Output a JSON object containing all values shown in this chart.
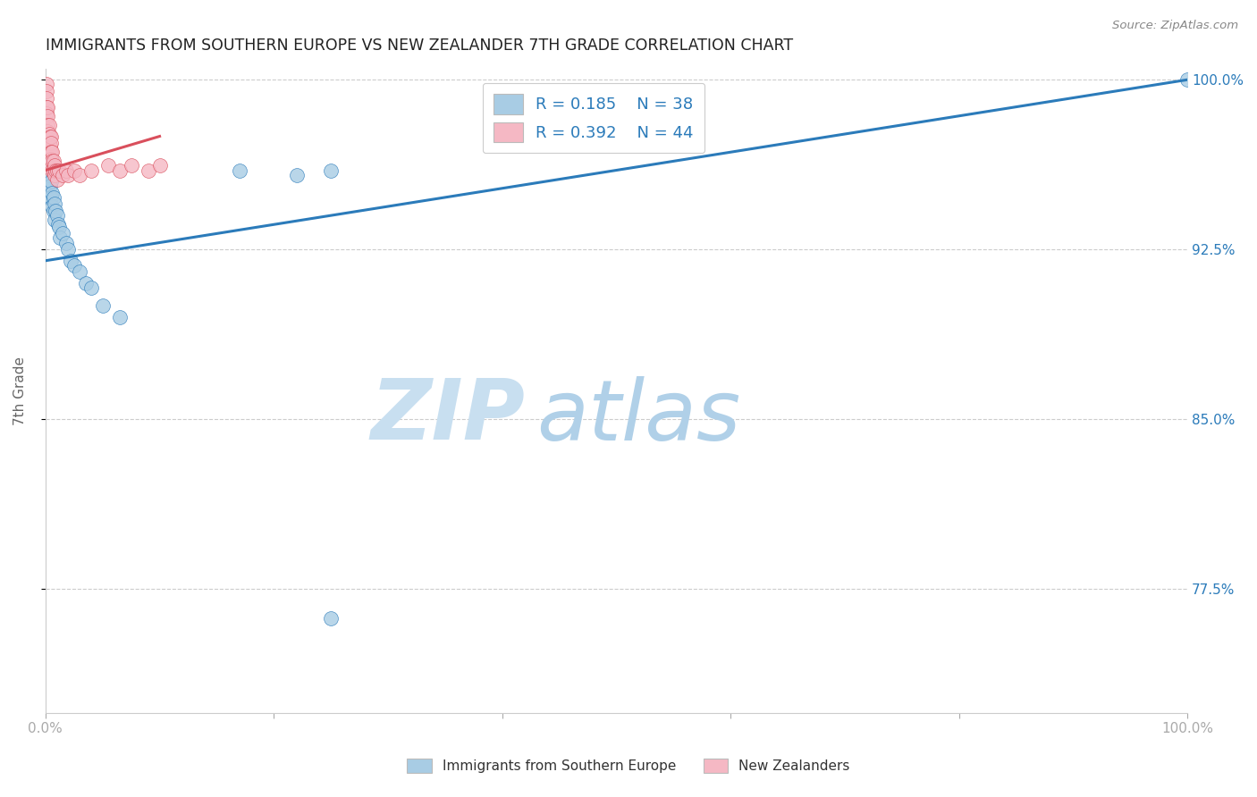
{
  "title": "IMMIGRANTS FROM SOUTHERN EUROPE VS NEW ZEALANDER 7TH GRADE CORRELATION CHART",
  "source": "Source: ZipAtlas.com",
  "ylabel": "7th Grade",
  "xlim": [
    0.0,
    1.0
  ],
  "ylim": [
    0.72,
    1.005
  ],
  "yticks": [
    0.775,
    0.85,
    0.925,
    1.0
  ],
  "ytick_labels": [
    "77.5%",
    "85.0%",
    "92.5%",
    "100.0%"
  ],
  "color_blue": "#a8cce4",
  "color_blue_line": "#2b7bba",
  "color_pink": "#f5b8c4",
  "color_pink_line": "#d94f5c",
  "color_text_blue": "#2b7bba",
  "watermark_zip": "ZIP",
  "watermark_atlas": "atlas",
  "blue_scatter_x": [
    0.001,
    0.001,
    0.002,
    0.002,
    0.002,
    0.003,
    0.003,
    0.003,
    0.004,
    0.004,
    0.004,
    0.005,
    0.005,
    0.006,
    0.006,
    0.007,
    0.007,
    0.008,
    0.008,
    0.009,
    0.01,
    0.011,
    0.012,
    0.013,
    0.015,
    0.018,
    0.02,
    0.022,
    0.025,
    0.03,
    0.035,
    0.04,
    0.05,
    0.065,
    0.17,
    0.22,
    0.25,
    1.0
  ],
  "blue_scatter_y": [
    0.96,
    0.955,
    0.965,
    0.96,
    0.955,
    0.962,
    0.958,
    0.954,
    0.958,
    0.953,
    0.948,
    0.955,
    0.948,
    0.95,
    0.944,
    0.948,
    0.942,
    0.945,
    0.938,
    0.942,
    0.94,
    0.936,
    0.935,
    0.93,
    0.932,
    0.928,
    0.925,
    0.92,
    0.918,
    0.915,
    0.91,
    0.908,
    0.9,
    0.895,
    0.96,
    0.958,
    0.96,
    1.0
  ],
  "pink_scatter_x": [
    0.001,
    0.001,
    0.001,
    0.001,
    0.001,
    0.002,
    0.002,
    0.002,
    0.002,
    0.002,
    0.003,
    0.003,
    0.003,
    0.003,
    0.004,
    0.004,
    0.004,
    0.005,
    0.005,
    0.005,
    0.005,
    0.005,
    0.006,
    0.006,
    0.006,
    0.007,
    0.007,
    0.008,
    0.008,
    0.009,
    0.01,
    0.01,
    0.012,
    0.015,
    0.018,
    0.02,
    0.025,
    0.03,
    0.04,
    0.055,
    0.065,
    0.075,
    0.09,
    0.1
  ],
  "pink_scatter_y": [
    0.998,
    0.995,
    0.992,
    0.988,
    0.985,
    0.988,
    0.984,
    0.98,
    0.977,
    0.974,
    0.98,
    0.976,
    0.972,
    0.969,
    0.975,
    0.971,
    0.968,
    0.975,
    0.972,
    0.968,
    0.965,
    0.961,
    0.968,
    0.964,
    0.96,
    0.964,
    0.96,
    0.962,
    0.958,
    0.96,
    0.96,
    0.956,
    0.96,
    0.958,
    0.96,
    0.958,
    0.96,
    0.958,
    0.96,
    0.962,
    0.96,
    0.962,
    0.96,
    0.962
  ],
  "blue_outlier_x": [
    0.25
  ],
  "blue_outlier_y": [
    0.762
  ],
  "blue_line_x": [
    0.0,
    1.0
  ],
  "blue_line_y": [
    0.92,
    1.0
  ],
  "pink_line_x": [
    0.0,
    0.1
  ],
  "pink_line_y": [
    0.96,
    0.975
  ]
}
